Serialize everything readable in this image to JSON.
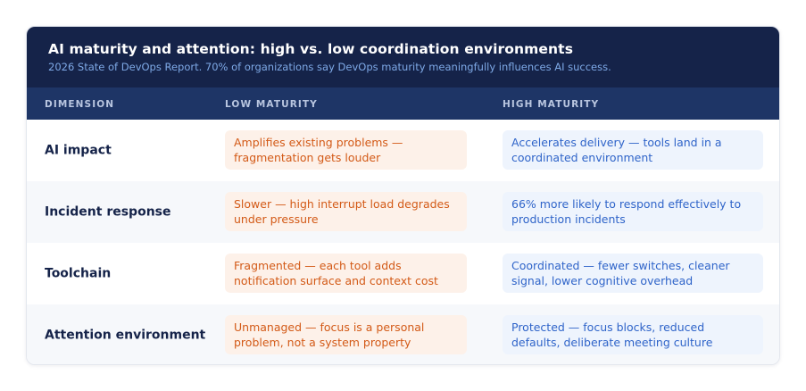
{
  "header": {
    "title": "AI maturity and attention: high vs. low coordination environments",
    "subtitle": "2026 State of DevOps Report. 70% of organizations say DevOps maturity meaningfully influences AI success."
  },
  "columns": {
    "dimension": "DIMENSION",
    "low": "LOW MATURITY",
    "high": "HIGH MATURITY"
  },
  "rows": [
    {
      "dimension": "AI impact",
      "low": "Amplifies existing problems — fragmentation gets louder",
      "high": "Accelerates delivery — tools land in a coordinated environment"
    },
    {
      "dimension": "Incident response",
      "low": "Slower — high interrupt load degrades under pressure",
      "high": "66% more likely to respond effectively to production incidents"
    },
    {
      "dimension": "Toolchain",
      "low": "Fragmented — each tool adds notification surface and context cost",
      "high": "Coordinated — fewer switches, cleaner signal, lower cognitive overhead"
    },
    {
      "dimension": "Attention environment",
      "low": "Unmanaged — focus is a personal problem, not a system property",
      "high": "Protected — focus blocks, reduced defaults, deliberate meeting culture"
    }
  ],
  "colors": {
    "header_bg": "#152349",
    "column_header_bg": "#1e3566",
    "low_text": "#d35a17",
    "low_bg": "#fdf1e9",
    "high_text": "#2f64c9",
    "high_bg": "#eef4fd"
  }
}
